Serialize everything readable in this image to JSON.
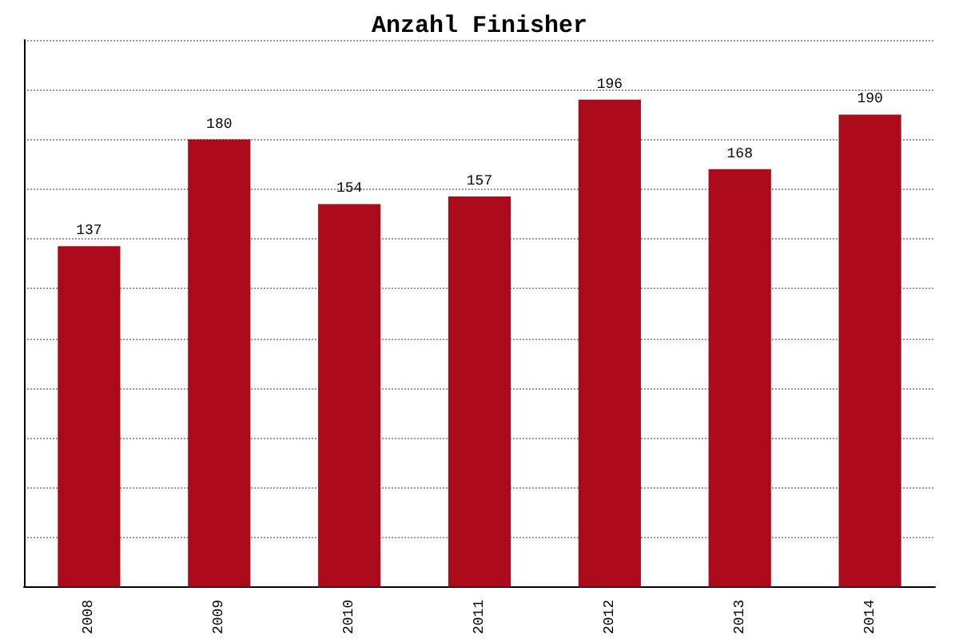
{
  "chart_data": {
    "type": "bar",
    "title": "Anzahl Finisher",
    "categories": [
      "2008",
      "2009",
      "2010",
      "2011",
      "2012",
      "2013",
      "2014"
    ],
    "values": [
      137,
      180,
      154,
      157,
      196,
      168,
      190
    ],
    "color": "#aa0a1a",
    "ylim": [
      0,
      220
    ],
    "yticks": [
      {
        "value": 0,
        "label": null
      },
      {
        "value": 20,
        "label": null
      },
      {
        "value": 40,
        "label": null
      },
      {
        "value": 60,
        "label": null
      },
      {
        "value": 80,
        "label": null
      },
      {
        "value": 100,
        "label": null
      },
      {
        "value": 120,
        "label": null
      },
      {
        "value": 140,
        "label": null
      },
      {
        "value": 160,
        "label": null
      },
      {
        "value": 180,
        "label": null
      },
      {
        "value": 200,
        "label": null
      },
      {
        "value": 220,
        "label": null
      }
    ],
    "grid": "y",
    "data_labels": true,
    "tick_labels": "x"
  }
}
